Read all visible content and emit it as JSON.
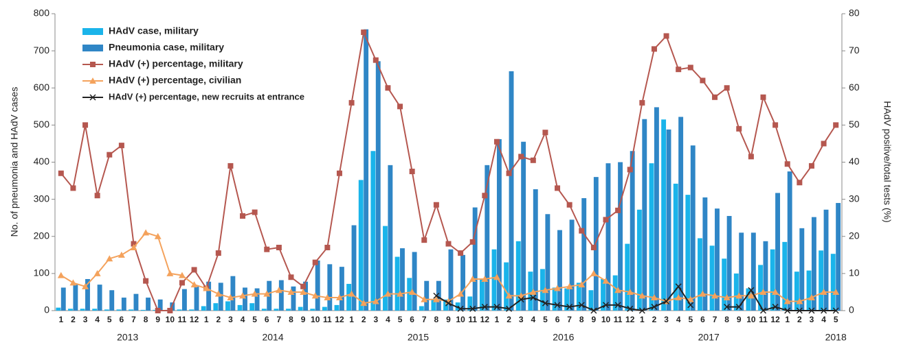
{
  "chart_data": {
    "type": "bar",
    "y_label": "No. of pneumonia and HAdV cases",
    "y2_label": "HAdV positive/total tests (%)",
    "categories": [
      "1",
      "2",
      "3",
      "4",
      "5",
      "6",
      "7",
      "8",
      "9",
      "10",
      "11",
      "12",
      "1",
      "2",
      "3",
      "4",
      "5",
      "6",
      "7",
      "8",
      "9",
      "10",
      "11",
      "12",
      "1",
      "2",
      "3",
      "4",
      "5",
      "6",
      "7",
      "8",
      "9",
      "10",
      "11",
      "12",
      "1",
      "2",
      "3",
      "4",
      "5",
      "6",
      "7",
      "8",
      "9",
      "10",
      "11",
      "12",
      "1",
      "2",
      "3",
      "4",
      "5",
      "6",
      "7",
      "8",
      "9",
      "10",
      "11",
      "12",
      "1",
      "2",
      "3",
      "4",
      "5"
    ],
    "years": [
      "2013",
      "2014",
      "2015",
      "2016",
      "2017",
      "2018"
    ],
    "ylim": [
      0,
      800
    ],
    "yticks": [
      0,
      100,
      200,
      300,
      400,
      500,
      600,
      700,
      800
    ],
    "y2lim": [
      0,
      80
    ],
    "y2ticks": [
      0,
      10,
      20,
      30,
      40,
      50,
      60,
      70,
      80
    ],
    "series": [
      {
        "name": "HAdV case, military",
        "type": "bar",
        "color": "#1ab4ea",
        "values": [
          8,
          5,
          5,
          5,
          3,
          3,
          3,
          2,
          2,
          2,
          3,
          3,
          12,
          20,
          25,
          15,
          20,
          5,
          5,
          5,
          10,
          5,
          10,
          15,
          72,
          352,
          430,
          228,
          145,
          88,
          12,
          30,
          30,
          22,
          38,
          85,
          165,
          130,
          187,
          105,
          112,
          62,
          60,
          75,
          55,
          85,
          95,
          180,
          272,
          397,
          515,
          342,
          312,
          195,
          175,
          140,
          100,
          60,
          123,
          165,
          185,
          105,
          108,
          162,
          153
        ]
      },
      {
        "name": "Pneumonia case, military",
        "type": "bar",
        "color": "#2f86c6",
        "values": [
          62,
          70,
          85,
          70,
          55,
          35,
          45,
          35,
          30,
          22,
          58,
          65,
          78,
          75,
          93,
          62,
          60,
          80,
          82,
          65,
          78,
          135,
          125,
          118,
          230,
          758,
          672,
          392,
          168,
          158,
          80,
          80,
          165,
          150,
          278,
          392,
          462,
          645,
          455,
          327,
          260,
          217,
          245,
          303,
          360,
          397,
          400,
          430,
          516,
          548,
          488,
          522,
          445,
          305,
          275,
          255,
          210,
          210,
          187,
          317,
          375,
          222,
          252,
          272,
          290
        ]
      },
      {
        "name": "HAdV (+) percentage, military",
        "type": "line",
        "marker": "square",
        "axis": "y2",
        "color": "#b5574f",
        "values": [
          37,
          33,
          50,
          31,
          42,
          44.5,
          18,
          8,
          0,
          0,
          7.5,
          11,
          6,
          15.5,
          39,
          25.5,
          26.5,
          16.5,
          17,
          9,
          6.5,
          13,
          17,
          37,
          56,
          75,
          67.5,
          60,
          55,
          37.5,
          19,
          28.5,
          18,
          15.5,
          18.5,
          31,
          45.5,
          37,
          41.5,
          40.5,
          48,
          33,
          28.5,
          21.5,
          17,
          24.5,
          27,
          38,
          56,
          70.5,
          74,
          65,
          65.5,
          62,
          57.5,
          60,
          49,
          41.5,
          57.5,
          50,
          39.5,
          34.5,
          39,
          45,
          50
        ]
      },
      {
        "name": "HAdV (+) percentage, civilian",
        "type": "line",
        "marker": "triangle",
        "axis": "y2",
        "color": "#f4a25c",
        "values": [
          9.5,
          7.5,
          6.5,
          10,
          14,
          15,
          17,
          21,
          20,
          10,
          9.5,
          7,
          6,
          4.5,
          3.5,
          4,
          4.5,
          4.5,
          5.5,
          5,
          5,
          4,
          3.5,
          3.5,
          4.5,
          2,
          2.5,
          4.5,
          4.5,
          5,
          3,
          3,
          2.5,
          4.5,
          8.5,
          8.5,
          9,
          4,
          4,
          5,
          5.5,
          6,
          6.5,
          7,
          10,
          8,
          5.5,
          5,
          4,
          3.5,
          2.5,
          3.5,
          3,
          4.5,
          4,
          3.5,
          4,
          4,
          5,
          5,
          2.5,
          2.5,
          3.5,
          5,
          5
        ]
      },
      {
        "name": "HAdV (+) percentage, new recruits at entrance",
        "type": "line",
        "marker": "x",
        "axis": "y2",
        "color": "#222222",
        "values": [
          null,
          null,
          null,
          null,
          null,
          null,
          null,
          null,
          null,
          null,
          null,
          null,
          null,
          null,
          null,
          null,
          null,
          null,
          null,
          null,
          null,
          null,
          null,
          null,
          null,
          null,
          null,
          null,
          null,
          null,
          null,
          4,
          2,
          0.5,
          0.5,
          1,
          1,
          0.5,
          3,
          3.5,
          2,
          1.5,
          1,
          1.5,
          0,
          1.5,
          1.5,
          0.5,
          0,
          1,
          2.5,
          6.5,
          1.5,
          null,
          null,
          1,
          1,
          5.5,
          0,
          1,
          0,
          0,
          0,
          0,
          0
        ]
      }
    ]
  }
}
